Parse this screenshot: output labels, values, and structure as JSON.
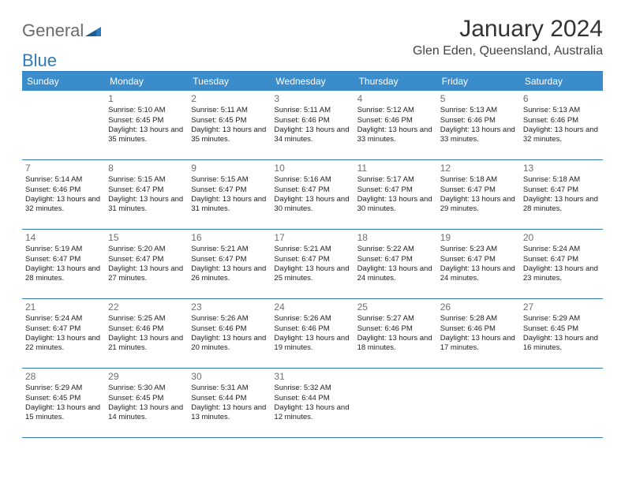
{
  "brand": {
    "part1": "General",
    "part2": "Blue"
  },
  "title": "January 2024",
  "subtitle": "Glen Eden, Queensland, Australia",
  "colors": {
    "header_bg": "#3b8ccb",
    "header_text": "#ffffff",
    "rule": "#2d7ac0",
    "daynum": "#6f6f6f",
    "body_text": "#222222",
    "logo_gray": "#6b6b6b",
    "logo_blue": "#2d7ac0"
  },
  "day_headers": [
    "Sunday",
    "Monday",
    "Tuesday",
    "Wednesday",
    "Thursday",
    "Friday",
    "Saturday"
  ],
  "weeks": [
    [
      null,
      {
        "n": "1",
        "sr": "Sunrise: 5:10 AM",
        "ss": "Sunset: 6:45 PM",
        "dl": "Daylight: 13 hours and 35 minutes."
      },
      {
        "n": "2",
        "sr": "Sunrise: 5:11 AM",
        "ss": "Sunset: 6:45 PM",
        "dl": "Daylight: 13 hours and 35 minutes."
      },
      {
        "n": "3",
        "sr": "Sunrise: 5:11 AM",
        "ss": "Sunset: 6:46 PM",
        "dl": "Daylight: 13 hours and 34 minutes."
      },
      {
        "n": "4",
        "sr": "Sunrise: 5:12 AM",
        "ss": "Sunset: 6:46 PM",
        "dl": "Daylight: 13 hours and 33 minutes."
      },
      {
        "n": "5",
        "sr": "Sunrise: 5:13 AM",
        "ss": "Sunset: 6:46 PM",
        "dl": "Daylight: 13 hours and 33 minutes."
      },
      {
        "n": "6",
        "sr": "Sunrise: 5:13 AM",
        "ss": "Sunset: 6:46 PM",
        "dl": "Daylight: 13 hours and 32 minutes."
      }
    ],
    [
      {
        "n": "7",
        "sr": "Sunrise: 5:14 AM",
        "ss": "Sunset: 6:46 PM",
        "dl": "Daylight: 13 hours and 32 minutes."
      },
      {
        "n": "8",
        "sr": "Sunrise: 5:15 AM",
        "ss": "Sunset: 6:47 PM",
        "dl": "Daylight: 13 hours and 31 minutes."
      },
      {
        "n": "9",
        "sr": "Sunrise: 5:15 AM",
        "ss": "Sunset: 6:47 PM",
        "dl": "Daylight: 13 hours and 31 minutes."
      },
      {
        "n": "10",
        "sr": "Sunrise: 5:16 AM",
        "ss": "Sunset: 6:47 PM",
        "dl": "Daylight: 13 hours and 30 minutes."
      },
      {
        "n": "11",
        "sr": "Sunrise: 5:17 AM",
        "ss": "Sunset: 6:47 PM",
        "dl": "Daylight: 13 hours and 30 minutes."
      },
      {
        "n": "12",
        "sr": "Sunrise: 5:18 AM",
        "ss": "Sunset: 6:47 PM",
        "dl": "Daylight: 13 hours and 29 minutes."
      },
      {
        "n": "13",
        "sr": "Sunrise: 5:18 AM",
        "ss": "Sunset: 6:47 PM",
        "dl": "Daylight: 13 hours and 28 minutes."
      }
    ],
    [
      {
        "n": "14",
        "sr": "Sunrise: 5:19 AM",
        "ss": "Sunset: 6:47 PM",
        "dl": "Daylight: 13 hours and 28 minutes."
      },
      {
        "n": "15",
        "sr": "Sunrise: 5:20 AM",
        "ss": "Sunset: 6:47 PM",
        "dl": "Daylight: 13 hours and 27 minutes."
      },
      {
        "n": "16",
        "sr": "Sunrise: 5:21 AM",
        "ss": "Sunset: 6:47 PM",
        "dl": "Daylight: 13 hours and 26 minutes."
      },
      {
        "n": "17",
        "sr": "Sunrise: 5:21 AM",
        "ss": "Sunset: 6:47 PM",
        "dl": "Daylight: 13 hours and 25 minutes."
      },
      {
        "n": "18",
        "sr": "Sunrise: 5:22 AM",
        "ss": "Sunset: 6:47 PM",
        "dl": "Daylight: 13 hours and 24 minutes."
      },
      {
        "n": "19",
        "sr": "Sunrise: 5:23 AM",
        "ss": "Sunset: 6:47 PM",
        "dl": "Daylight: 13 hours and 24 minutes."
      },
      {
        "n": "20",
        "sr": "Sunrise: 5:24 AM",
        "ss": "Sunset: 6:47 PM",
        "dl": "Daylight: 13 hours and 23 minutes."
      }
    ],
    [
      {
        "n": "21",
        "sr": "Sunrise: 5:24 AM",
        "ss": "Sunset: 6:47 PM",
        "dl": "Daylight: 13 hours and 22 minutes."
      },
      {
        "n": "22",
        "sr": "Sunrise: 5:25 AM",
        "ss": "Sunset: 6:46 PM",
        "dl": "Daylight: 13 hours and 21 minutes."
      },
      {
        "n": "23",
        "sr": "Sunrise: 5:26 AM",
        "ss": "Sunset: 6:46 PM",
        "dl": "Daylight: 13 hours and 20 minutes."
      },
      {
        "n": "24",
        "sr": "Sunrise: 5:26 AM",
        "ss": "Sunset: 6:46 PM",
        "dl": "Daylight: 13 hours and 19 minutes."
      },
      {
        "n": "25",
        "sr": "Sunrise: 5:27 AM",
        "ss": "Sunset: 6:46 PM",
        "dl": "Daylight: 13 hours and 18 minutes."
      },
      {
        "n": "26",
        "sr": "Sunrise: 5:28 AM",
        "ss": "Sunset: 6:46 PM",
        "dl": "Daylight: 13 hours and 17 minutes."
      },
      {
        "n": "27",
        "sr": "Sunrise: 5:29 AM",
        "ss": "Sunset: 6:45 PM",
        "dl": "Daylight: 13 hours and 16 minutes."
      }
    ],
    [
      {
        "n": "28",
        "sr": "Sunrise: 5:29 AM",
        "ss": "Sunset: 6:45 PM",
        "dl": "Daylight: 13 hours and 15 minutes."
      },
      {
        "n": "29",
        "sr": "Sunrise: 5:30 AM",
        "ss": "Sunset: 6:45 PM",
        "dl": "Daylight: 13 hours and 14 minutes."
      },
      {
        "n": "30",
        "sr": "Sunrise: 5:31 AM",
        "ss": "Sunset: 6:44 PM",
        "dl": "Daylight: 13 hours and 13 minutes."
      },
      {
        "n": "31",
        "sr": "Sunrise: 5:32 AM",
        "ss": "Sunset: 6:44 PM",
        "dl": "Daylight: 13 hours and 12 minutes."
      },
      null,
      null,
      null
    ]
  ]
}
